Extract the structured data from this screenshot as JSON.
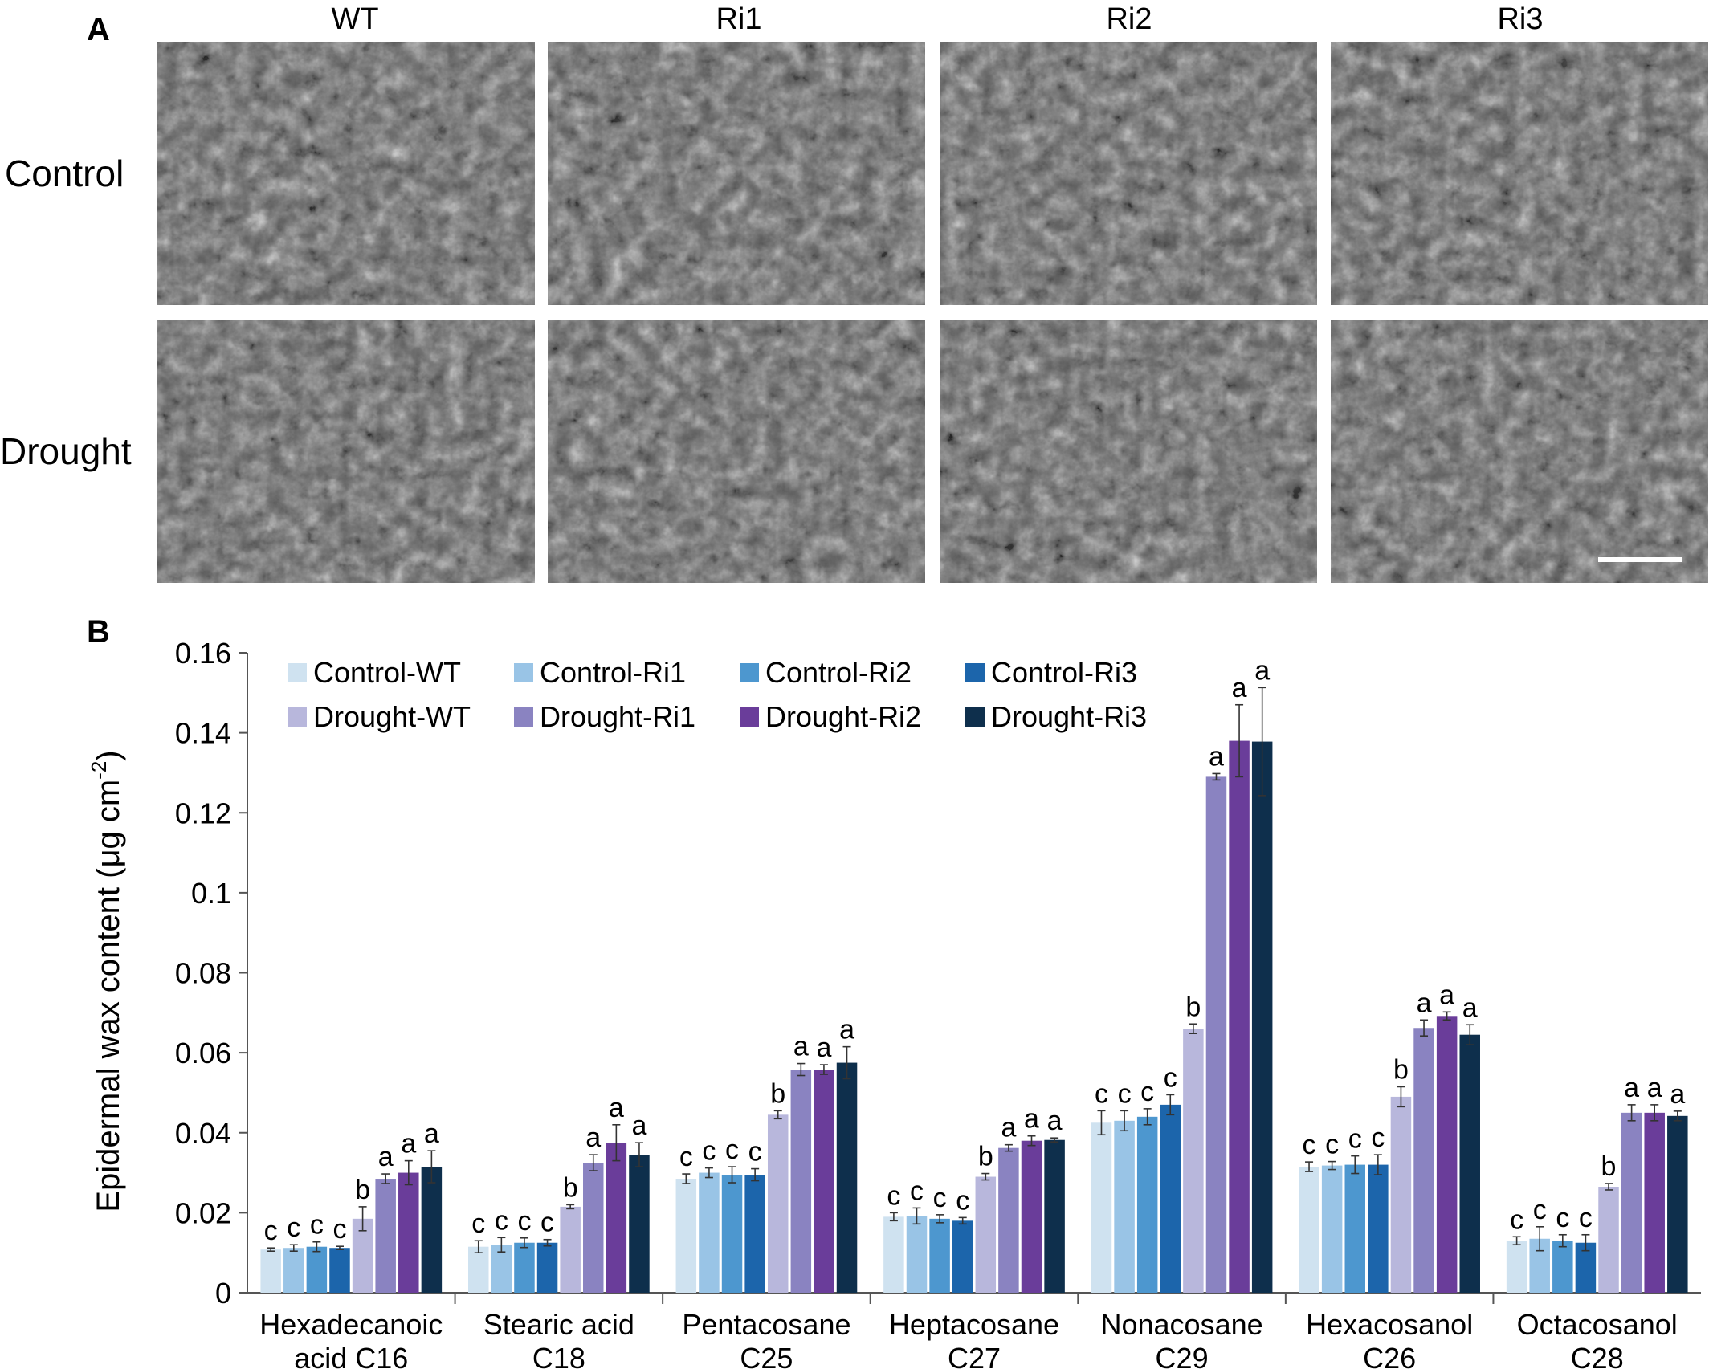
{
  "panel_a": {
    "label": "A",
    "columns": [
      "WT",
      "Ri1",
      "Ri2",
      "Ri3"
    ],
    "rows": [
      "Control",
      "Drought"
    ]
  },
  "panel_b": {
    "label": "B"
  },
  "chart_data": {
    "type": "bar",
    "title": "",
    "xlabel": "",
    "ylabel": "Epidermal wax content (μg cm",
    "ylabel_sup": "-2",
    "ylabel_close": ")",
    "ylim": [
      0,
      0.16
    ],
    "yticks": [
      0,
      0.02,
      0.04,
      0.06,
      0.08,
      0.1,
      0.12,
      0.14,
      0.16
    ],
    "ytick_labels": [
      "0",
      "0.02",
      "0.04",
      "0.06",
      "0.08",
      "0.1",
      "0.12",
      "0.14",
      "0.16"
    ],
    "grid": false,
    "legend_position": "top-left",
    "categories": [
      [
        "Hexadecanoic",
        "acid C16"
      ],
      [
        "Stearic acid",
        "C18"
      ],
      [
        "Pentacosane",
        "C25"
      ],
      [
        "Heptacosane",
        "C27"
      ],
      [
        "Nonacosane",
        "C29"
      ],
      [
        "Hexacosanol",
        "C26"
      ],
      [
        "Octacosanol",
        "C28"
      ]
    ],
    "series": [
      {
        "name": "Control-WT",
        "color": "#cfe2f0",
        "values": [
          0.0108,
          0.0115,
          0.0285,
          0.019,
          0.0425,
          0.0315,
          0.013
        ],
        "errors": [
          0.0004,
          0.0015,
          0.0012,
          0.001,
          0.003,
          0.0012,
          0.001
        ],
        "letters": [
          "c",
          "c",
          "c",
          "c",
          "c",
          "c",
          "c"
        ]
      },
      {
        "name": "Control-Ri1",
        "color": "#99c4e6",
        "values": [
          0.0112,
          0.012,
          0.03,
          0.0192,
          0.043,
          0.0318,
          0.0135
        ],
        "errors": [
          0.0008,
          0.0018,
          0.0012,
          0.002,
          0.0025,
          0.001,
          0.003
        ],
        "letters": [
          "c",
          "c",
          "c",
          "c",
          "c",
          "c",
          "c"
        ]
      },
      {
        "name": "Control-Ri2",
        "color": "#4d97cf",
        "values": [
          0.0115,
          0.0125,
          0.0295,
          0.0185,
          0.044,
          0.032,
          0.013
        ],
        "errors": [
          0.0012,
          0.0012,
          0.002,
          0.001,
          0.002,
          0.0022,
          0.0015
        ],
        "letters": [
          "c",
          "c",
          "c",
          "c",
          "c",
          "c",
          "c"
        ]
      },
      {
        "name": "Control-Ri3",
        "color": "#1c65ab",
        "values": [
          0.0112,
          0.0125,
          0.0295,
          0.018,
          0.047,
          0.032,
          0.0125
        ],
        "errors": [
          0.0004,
          0.0008,
          0.0015,
          0.0008,
          0.0025,
          0.0025,
          0.002
        ],
        "letters": [
          "c",
          "c",
          "c",
          "c",
          "c",
          "c",
          "c"
        ]
      },
      {
        "name": "Drought-WT",
        "color": "#b8b7dc",
        "values": [
          0.0185,
          0.0215,
          0.0445,
          0.029,
          0.066,
          0.049,
          0.0265
        ],
        "errors": [
          0.003,
          0.0005,
          0.001,
          0.0008,
          0.0012,
          0.0025,
          0.0008
        ],
        "letters": [
          "b",
          "b",
          "b",
          "b",
          "b",
          "b",
          "b"
        ]
      },
      {
        "name": "Drought-Ri1",
        "color": "#8a83c1",
        "values": [
          0.0285,
          0.0325,
          0.0558,
          0.0362,
          0.129,
          0.0662,
          0.045
        ],
        "errors": [
          0.0012,
          0.002,
          0.0015,
          0.0008,
          0.0008,
          0.002,
          0.002
        ],
        "letters": [
          "a",
          "a",
          "a",
          "a",
          "a",
          "a",
          "a"
        ]
      },
      {
        "name": "Drought-Ri2",
        "color": "#6a3d9a",
        "values": [
          0.03,
          0.0375,
          0.0558,
          0.038,
          0.138,
          0.0692,
          0.045
        ],
        "errors": [
          0.003,
          0.0045,
          0.0012,
          0.0012,
          0.009,
          0.001,
          0.002
        ],
        "letters": [
          "a",
          "a",
          "a",
          "a",
          "a",
          "a",
          "a"
        ]
      },
      {
        "name": "Drought-Ri3",
        "color": "#0e2f4c",
        "values": [
          0.0315,
          0.0345,
          0.0575,
          0.0382,
          0.1378,
          0.0645,
          0.0442
        ],
        "errors": [
          0.004,
          0.003,
          0.004,
          0.0005,
          0.0135,
          0.0025,
          0.0012
        ],
        "letters": [
          "a",
          "a",
          "a",
          "a",
          "a",
          "a",
          "a"
        ]
      }
    ]
  }
}
